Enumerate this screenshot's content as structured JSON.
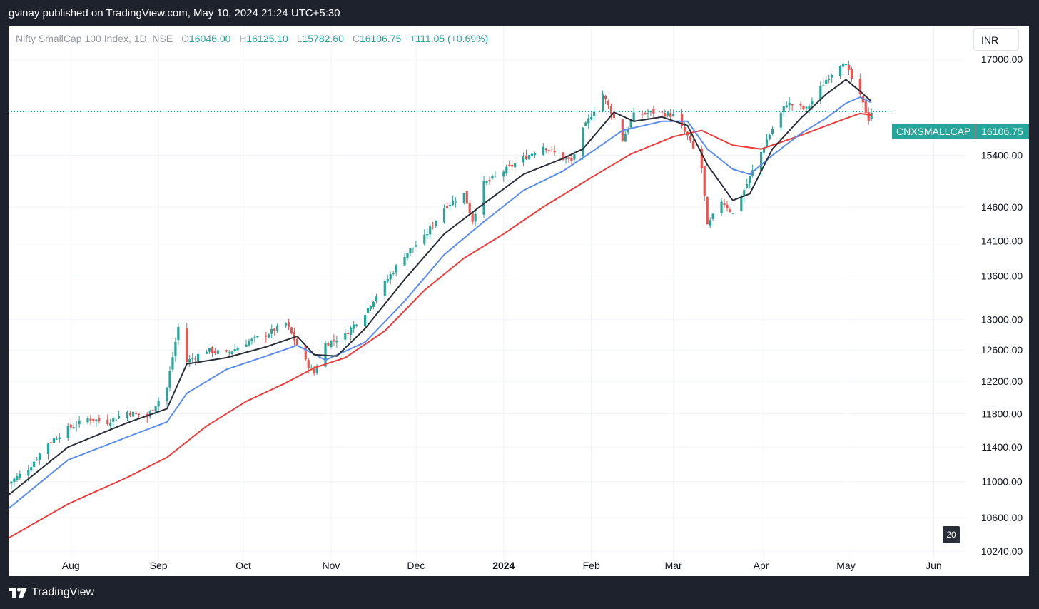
{
  "header": {
    "published": "gvinay published on TradingView.com, May 10, 2024 21:24 UTC+5:30"
  },
  "legend": {
    "symbol": "Nifty SmallCap 100 Index, 1D, NSE",
    "o_label": "O",
    "o_value": "16046.00",
    "h_label": "H",
    "h_value": "16125.10",
    "l_label": "L",
    "l_value": "15782.60",
    "c_label": "C",
    "c_value": "16106.75",
    "change": "+111.05 (+0.69%)"
  },
  "currency_button": "INR",
  "price_tag": {
    "symbol": "CNXSMALLCAP",
    "value": "16106.75"
  },
  "scale_badge": "20",
  "footer": {
    "brand": "TradingView"
  },
  "colors": {
    "up": "#26a69a",
    "down": "#ef5350",
    "ema_fast": "#2a2e39",
    "ema_mid": "#5b8def",
    "ema_slow": "#ef3b3b",
    "grid": "#f0f3fa"
  },
  "chart_data": {
    "type": "candlestick",
    "y_scale": "log",
    "ylim": [
      9980,
      17600
    ],
    "y_ticks": [
      17000,
      15400,
      14600,
      14100,
      13600,
      13000,
      12600,
      12200,
      11800,
      11400,
      11000,
      10600,
      10240
    ],
    "y_tick_labels": [
      "17000.00",
      "15400.00",
      "14600.00",
      "14100.00",
      "13600.00",
      "13000.00",
      "12600.00",
      "12200.00",
      "11800.00",
      "11400.00",
      "11000.00",
      "10600.00",
      "10240.00"
    ],
    "x_ticks": [
      {
        "label": "Aug",
        "date": "2023-08-01",
        "bold": false
      },
      {
        "label": "Sep",
        "date": "2023-09-01",
        "bold": false
      },
      {
        "label": "Oct",
        "date": "2023-10-01",
        "bold": false
      },
      {
        "label": "Nov",
        "date": "2023-11-01",
        "bold": false
      },
      {
        "label": "Dec",
        "date": "2023-12-01",
        "bold": false
      },
      {
        "label": "2024",
        "date": "2024-01-01",
        "bold": true
      },
      {
        "label": "Feb",
        "date": "2024-02-01",
        "bold": false
      },
      {
        "label": "Mar",
        "date": "2024-03-01",
        "bold": false
      },
      {
        "label": "Apr",
        "date": "2024-04-01",
        "bold": false
      },
      {
        "label": "May",
        "date": "2024-05-01",
        "bold": false
      },
      {
        "label": "Jun",
        "date": "2024-06-01",
        "bold": false
      }
    ],
    "x_range": [
      "2023-07-10",
      "2024-06-12"
    ],
    "last_price": 16106.75,
    "close_path": [
      [
        "2023-07-10",
        10980
      ],
      [
        "2023-07-17",
        11150
      ],
      [
        "2023-07-24",
        11450
      ],
      [
        "2023-07-31",
        11620
      ],
      [
        "2023-08-07",
        11740
      ],
      [
        "2023-08-14",
        11700
      ],
      [
        "2023-08-21",
        11820
      ],
      [
        "2023-08-28",
        11760
      ],
      [
        "2023-09-04",
        12120
      ],
      [
        "2023-09-08",
        12900
      ],
      [
        "2023-09-11",
        12450
      ],
      [
        "2023-09-18",
        12600
      ],
      [
        "2023-09-25",
        12550
      ],
      [
        "2023-10-02",
        12700
      ],
      [
        "2023-10-09",
        12800
      ],
      [
        "2023-10-16",
        12950
      ],
      [
        "2023-10-23",
        12450
      ],
      [
        "2023-10-26",
        12300
      ],
      [
        "2023-10-30",
        12680
      ],
      [
        "2023-11-06",
        12800
      ],
      [
        "2023-11-13",
        13100
      ],
      [
        "2023-11-20",
        13500
      ],
      [
        "2023-11-27",
        13900
      ],
      [
        "2023-12-04",
        14150
      ],
      [
        "2023-12-11",
        14600
      ],
      [
        "2023-12-18",
        14800
      ],
      [
        "2023-12-21",
        14400
      ],
      [
        "2023-12-25",
        14950
      ],
      [
        "2024-01-01",
        15150
      ],
      [
        "2024-01-08",
        15350
      ],
      [
        "2024-01-15",
        15550
      ],
      [
        "2024-01-22",
        15350
      ],
      [
        "2024-01-25",
        15300
      ],
      [
        "2024-01-29",
        15800
      ],
      [
        "2024-02-05",
        16400
      ],
      [
        "2024-02-09",
        16000
      ],
      [
        "2024-02-12",
        15650
      ],
      [
        "2024-02-16",
        16050
      ],
      [
        "2024-02-23",
        16100
      ],
      [
        "2024-03-01",
        16050
      ],
      [
        "2024-03-06",
        15700
      ],
      [
        "2024-03-11",
        15200
      ],
      [
        "2024-03-13",
        14300
      ],
      [
        "2024-03-18",
        14700
      ],
      [
        "2024-03-22",
        14500
      ],
      [
        "2024-03-27",
        14950
      ],
      [
        "2024-04-03",
        15650
      ],
      [
        "2024-04-10",
        16250
      ],
      [
        "2024-04-17",
        16150
      ],
      [
        "2024-04-24",
        16650
      ],
      [
        "2024-04-30",
        16980
      ],
      [
        "2024-05-06",
        16350
      ],
      [
        "2024-05-09",
        15990
      ],
      [
        "2024-05-10",
        16106.75
      ]
    ],
    "ema_fast_path": [
      [
        "2023-07-10",
        10850
      ],
      [
        "2023-07-31",
        11400
      ],
      [
        "2023-08-21",
        11690
      ],
      [
        "2023-09-04",
        11860
      ],
      [
        "2023-09-11",
        12420
      ],
      [
        "2023-09-25",
        12500
      ],
      [
        "2023-10-09",
        12640
      ],
      [
        "2023-10-20",
        12780
      ],
      [
        "2023-10-26",
        12540
      ],
      [
        "2023-11-03",
        12520
      ],
      [
        "2023-11-13",
        12880
      ],
      [
        "2023-11-27",
        13550
      ],
      [
        "2023-12-11",
        14200
      ],
      [
        "2023-12-25",
        14650
      ],
      [
        "2024-01-08",
        15100
      ],
      [
        "2024-01-22",
        15350
      ],
      [
        "2024-01-29",
        15500
      ],
      [
        "2024-02-09",
        16100
      ],
      [
        "2024-02-16",
        15950
      ],
      [
        "2024-02-26",
        16020
      ],
      [
        "2024-03-06",
        15880
      ],
      [
        "2024-03-13",
        15250
      ],
      [
        "2024-03-22",
        14700
      ],
      [
        "2024-03-28",
        14800
      ],
      [
        "2024-04-05",
        15500
      ],
      [
        "2024-04-15",
        16000
      ],
      [
        "2024-04-24",
        16400
      ],
      [
        "2024-05-01",
        16650
      ],
      [
        "2024-05-06",
        16450
      ],
      [
        "2024-05-10",
        16280
      ]
    ],
    "ema_mid_path": [
      [
        "2023-07-10",
        10700
      ],
      [
        "2023-07-31",
        11250
      ],
      [
        "2023-08-21",
        11520
      ],
      [
        "2023-09-04",
        11700
      ],
      [
        "2023-09-11",
        12050
      ],
      [
        "2023-09-25",
        12350
      ],
      [
        "2023-10-09",
        12520
      ],
      [
        "2023-10-20",
        12660
      ],
      [
        "2023-10-30",
        12470
      ],
      [
        "2023-11-13",
        12700
      ],
      [
        "2023-11-27",
        13250
      ],
      [
        "2023-12-11",
        13900
      ],
      [
        "2023-12-25",
        14380
      ],
      [
        "2024-01-08",
        14850
      ],
      [
        "2024-01-22",
        15150
      ],
      [
        "2024-02-01",
        15450
      ],
      [
        "2024-02-12",
        15800
      ],
      [
        "2024-02-26",
        15950
      ],
      [
        "2024-03-06",
        15950
      ],
      [
        "2024-03-13",
        15500
      ],
      [
        "2024-03-22",
        15180
      ],
      [
        "2024-03-28",
        15100
      ],
      [
        "2024-04-05",
        15400
      ],
      [
        "2024-04-15",
        15750
      ],
      [
        "2024-04-24",
        16000
      ],
      [
        "2024-05-01",
        16250
      ],
      [
        "2024-05-06",
        16350
      ],
      [
        "2024-05-10",
        16260
      ]
    ],
    "ema_slow_path": [
      [
        "2023-07-10",
        10380
      ],
      [
        "2023-07-31",
        10750
      ],
      [
        "2023-08-21",
        11050
      ],
      [
        "2023-09-04",
        11280
      ],
      [
        "2023-09-18",
        11650
      ],
      [
        "2023-10-02",
        11950
      ],
      [
        "2023-10-16",
        12180
      ],
      [
        "2023-10-26",
        12370
      ],
      [
        "2023-11-06",
        12500
      ],
      [
        "2023-11-20",
        12850
      ],
      [
        "2023-12-04",
        13400
      ],
      [
        "2023-12-18",
        13850
      ],
      [
        "2024-01-01",
        14200
      ],
      [
        "2024-01-15",
        14600
      ],
      [
        "2024-02-01",
        15050
      ],
      [
        "2024-02-15",
        15420
      ],
      [
        "2024-03-01",
        15700
      ],
      [
        "2024-03-11",
        15800
      ],
      [
        "2024-03-22",
        15560
      ],
      [
        "2024-04-01",
        15500
      ],
      [
        "2024-04-15",
        15720
      ],
      [
        "2024-04-30",
        15980
      ],
      [
        "2024-05-06",
        16080
      ],
      [
        "2024-05-10",
        16050
      ]
    ]
  }
}
